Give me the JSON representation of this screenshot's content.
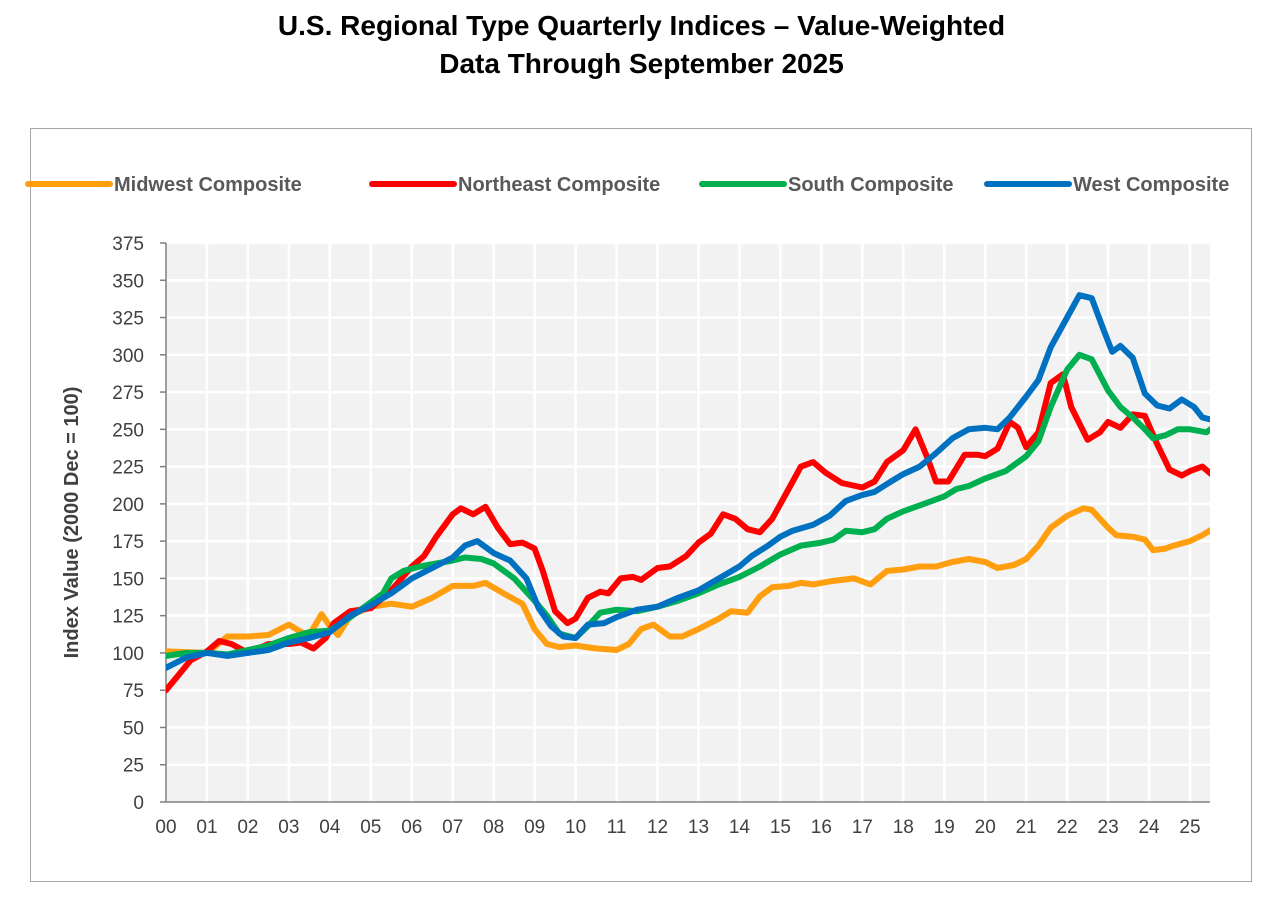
{
  "chart_data": {
    "type": "line",
    "title": "U.S. Regional Type Quarterly Indices – Value-Weighted",
    "subtitle": "Data Through September 2025",
    "xlabel": "",
    "ylabel": "Index Value (2000 Dec = 100)",
    "ylim": [
      0,
      375
    ],
    "yticks": [
      0,
      25,
      50,
      75,
      100,
      125,
      150,
      175,
      200,
      225,
      250,
      275,
      300,
      325,
      350,
      375
    ],
    "xlim": [
      2000,
      2025.6
    ],
    "xtick_labels": [
      "00",
      "01",
      "02",
      "03",
      "04",
      "05",
      "06",
      "07",
      "08",
      "09",
      "10",
      "11",
      "12",
      "13",
      "14",
      "15",
      "16",
      "17",
      "18",
      "19",
      "20",
      "21",
      "22",
      "23",
      "24",
      "25"
    ],
    "grid": true,
    "legend_position": "top",
    "series": [
      {
        "name": "Midwest Composite",
        "color": "#ff9e0f",
        "points": [
          [
            2000,
            101
          ],
          [
            2001,
            100
          ],
          [
            2001.5,
            111
          ],
          [
            2002,
            111
          ],
          [
            2002.5,
            112
          ],
          [
            2003,
            119
          ],
          [
            2003.3,
            114
          ],
          [
            2003.5,
            112
          ],
          [
            2003.8,
            126
          ],
          [
            2004,
            118
          ],
          [
            2004.2,
            112
          ],
          [
            2004.5,
            125
          ],
          [
            2005,
            131
          ],
          [
            2005.5,
            133
          ],
          [
            2006,
            131
          ],
          [
            2006.5,
            137
          ],
          [
            2007,
            145
          ],
          [
            2007.5,
            145
          ],
          [
            2007.8,
            147
          ],
          [
            2008.3,
            139
          ],
          [
            2008.7,
            133
          ],
          [
            2009,
            116
          ],
          [
            2009.3,
            106
          ],
          [
            2009.6,
            104
          ],
          [
            2010,
            105
          ],
          [
            2010.5,
            103
          ],
          [
            2011,
            102
          ],
          [
            2011.3,
            106
          ],
          [
            2011.6,
            116
          ],
          [
            2011.9,
            119
          ],
          [
            2012.3,
            111
          ],
          [
            2012.6,
            111
          ],
          [
            2013,
            116
          ],
          [
            2013.5,
            123
          ],
          [
            2013.8,
            128
          ],
          [
            2014.2,
            127
          ],
          [
            2014.5,
            138
          ],
          [
            2014.8,
            144
          ],
          [
            2015.2,
            145
          ],
          [
            2015.5,
            147
          ],
          [
            2015.8,
            146
          ],
          [
            2016.2,
            148
          ],
          [
            2016.5,
            149
          ],
          [
            2016.8,
            150
          ],
          [
            2017.2,
            146
          ],
          [
            2017.6,
            155
          ],
          [
            2018,
            156
          ],
          [
            2018.4,
            158
          ],
          [
            2018.8,
            158
          ],
          [
            2019.2,
            161
          ],
          [
            2019.6,
            163
          ],
          [
            2020,
            161
          ],
          [
            2020.3,
            157
          ],
          [
            2020.7,
            159
          ],
          [
            2021,
            163
          ],
          [
            2021.3,
            172
          ],
          [
            2021.6,
            184
          ],
          [
            2022,
            192
          ],
          [
            2022.4,
            197
          ],
          [
            2022.6,
            196
          ],
          [
            2023,
            184
          ],
          [
            2023.2,
            179
          ],
          [
            2023.6,
            178
          ],
          [
            2023.9,
            176
          ],
          [
            2024.1,
            169
          ],
          [
            2024.4,
            170
          ],
          [
            2024.6,
            172
          ],
          [
            2025,
            175
          ],
          [
            2025.3,
            179
          ],
          [
            2025.6,
            184
          ]
        ]
      },
      {
        "name": "Northeast Composite",
        "color": "#ff0000",
        "points": [
          [
            2000,
            75
          ],
          [
            2000.3,
            85
          ],
          [
            2000.6,
            95
          ],
          [
            2001,
            101
          ],
          [
            2001.3,
            108
          ],
          [
            2001.6,
            106
          ],
          [
            2002,
            100
          ],
          [
            2002.5,
            106
          ],
          [
            2003,
            106
          ],
          [
            2003.3,
            107
          ],
          [
            2003.6,
            103
          ],
          [
            2003.9,
            110
          ],
          [
            2004.1,
            120
          ],
          [
            2004.5,
            128
          ],
          [
            2005,
            130
          ],
          [
            2005.5,
            142
          ],
          [
            2006,
            158
          ],
          [
            2006.3,
            165
          ],
          [
            2006.6,
            178
          ],
          [
            2007,
            193
          ],
          [
            2007.2,
            197
          ],
          [
            2007.5,
            193
          ],
          [
            2007.8,
            198
          ],
          [
            2008.1,
            184
          ],
          [
            2008.4,
            173
          ],
          [
            2008.7,
            174
          ],
          [
            2009,
            170
          ],
          [
            2009.2,
            155
          ],
          [
            2009.5,
            128
          ],
          [
            2009.8,
            120
          ],
          [
            2010,
            123
          ],
          [
            2010.3,
            137
          ],
          [
            2010.6,
            141
          ],
          [
            2010.8,
            140
          ],
          [
            2011.1,
            150
          ],
          [
            2011.4,
            151
          ],
          [
            2011.6,
            149
          ],
          [
            2012,
            157
          ],
          [
            2012.3,
            158
          ],
          [
            2012.7,
            165
          ],
          [
            2013,
            174
          ],
          [
            2013.3,
            180
          ],
          [
            2013.6,
            193
          ],
          [
            2013.9,
            190
          ],
          [
            2014.2,
            183
          ],
          [
            2014.5,
            181
          ],
          [
            2014.8,
            190
          ],
          [
            2015.2,
            210
          ],
          [
            2015.5,
            225
          ],
          [
            2015.8,
            228
          ],
          [
            2016.1,
            221
          ],
          [
            2016.5,
            214
          ],
          [
            2017,
            211
          ],
          [
            2017.3,
            215
          ],
          [
            2017.6,
            228
          ],
          [
            2018,
            236
          ],
          [
            2018.3,
            250
          ],
          [
            2018.6,
            230
          ],
          [
            2018.8,
            215
          ],
          [
            2019.1,
            215
          ],
          [
            2019.5,
            233
          ],
          [
            2019.8,
            233
          ],
          [
            2020,
            232
          ],
          [
            2020.3,
            237
          ],
          [
            2020.6,
            255
          ],
          [
            2020.8,
            251
          ],
          [
            2021,
            238
          ],
          [
            2021.3,
            248
          ],
          [
            2021.6,
            281
          ],
          [
            2021.9,
            287
          ],
          [
            2022.1,
            265
          ],
          [
            2022.5,
            243
          ],
          [
            2022.8,
            248
          ],
          [
            2023,
            255
          ],
          [
            2023.3,
            251
          ],
          [
            2023.6,
            260
          ],
          [
            2023.9,
            259
          ],
          [
            2024.2,
            240
          ],
          [
            2024.5,
            223
          ],
          [
            2024.8,
            219
          ],
          [
            2025,
            222
          ],
          [
            2025.3,
            225
          ],
          [
            2025.6,
            218
          ]
        ]
      },
      {
        "name": "South Composite",
        "color": "#00b050",
        "points": [
          [
            2000,
            98
          ],
          [
            2000.5,
            100
          ],
          [
            2001,
            100
          ],
          [
            2001.5,
            99
          ],
          [
            2002,
            102
          ],
          [
            2002.5,
            105
          ],
          [
            2003,
            110
          ],
          [
            2003.5,
            114
          ],
          [
            2004,
            115
          ],
          [
            2004.5,
            124
          ],
          [
            2005,
            134
          ],
          [
            2005.3,
            140
          ],
          [
            2005.5,
            150
          ],
          [
            2005.8,
            155
          ],
          [
            2006.2,
            158
          ],
          [
            2006.6,
            160
          ],
          [
            2007,
            162
          ],
          [
            2007.3,
            164
          ],
          [
            2007.7,
            163
          ],
          [
            2008,
            160
          ],
          [
            2008.5,
            150
          ],
          [
            2009,
            135
          ],
          [
            2009.3,
            125
          ],
          [
            2009.6,
            113
          ],
          [
            2010,
            110
          ],
          [
            2010.3,
            118
          ],
          [
            2010.6,
            127
          ],
          [
            2011,
            129
          ],
          [
            2011.5,
            128
          ],
          [
            2012,
            131
          ],
          [
            2012.5,
            135
          ],
          [
            2013,
            140
          ],
          [
            2013.5,
            146
          ],
          [
            2014,
            151
          ],
          [
            2014.5,
            158
          ],
          [
            2015,
            166
          ],
          [
            2015.5,
            172
          ],
          [
            2016,
            174
          ],
          [
            2016.3,
            176
          ],
          [
            2016.6,
            182
          ],
          [
            2017,
            181
          ],
          [
            2017.3,
            183
          ],
          [
            2017.6,
            190
          ],
          [
            2018,
            195
          ],
          [
            2018.5,
            200
          ],
          [
            2019,
            205
          ],
          [
            2019.3,
            210
          ],
          [
            2019.6,
            212
          ],
          [
            2020,
            217
          ],
          [
            2020.5,
            222
          ],
          [
            2021,
            232
          ],
          [
            2021.3,
            242
          ],
          [
            2021.6,
            265
          ],
          [
            2022,
            290
          ],
          [
            2022.3,
            300
          ],
          [
            2022.6,
            297
          ],
          [
            2023,
            276
          ],
          [
            2023.3,
            265
          ],
          [
            2023.6,
            258
          ],
          [
            2023.9,
            250
          ],
          [
            2024.1,
            244
          ],
          [
            2024.4,
            246
          ],
          [
            2024.7,
            250
          ],
          [
            2025,
            250
          ],
          [
            2025.4,
            248
          ],
          [
            2025.6,
            252
          ]
        ]
      },
      {
        "name": "West Composite",
        "color": "#0070c0",
        "points": [
          [
            2000,
            90
          ],
          [
            2000.5,
            97
          ],
          [
            2001,
            100
          ],
          [
            2001.5,
            98
          ],
          [
            2002,
            100
          ],
          [
            2002.5,
            102
          ],
          [
            2003,
            107
          ],
          [
            2003.5,
            110
          ],
          [
            2004,
            114
          ],
          [
            2004.5,
            125
          ],
          [
            2005,
            132
          ],
          [
            2005.5,
            140
          ],
          [
            2006,
            150
          ],
          [
            2006.5,
            157
          ],
          [
            2007,
            164
          ],
          [
            2007.3,
            172
          ],
          [
            2007.6,
            175
          ],
          [
            2008,
            167
          ],
          [
            2008.4,
            162
          ],
          [
            2008.8,
            150
          ],
          [
            2009.1,
            130
          ],
          [
            2009.4,
            118
          ],
          [
            2009.7,
            111
          ],
          [
            2010,
            110
          ],
          [
            2010.3,
            119
          ],
          [
            2010.7,
            120
          ],
          [
            2011,
            124
          ],
          [
            2011.5,
            129
          ],
          [
            2012,
            131
          ],
          [
            2012.5,
            137
          ],
          [
            2013,
            142
          ],
          [
            2013.5,
            150
          ],
          [
            2014,
            158
          ],
          [
            2014.3,
            165
          ],
          [
            2014.7,
            172
          ],
          [
            2015,
            178
          ],
          [
            2015.3,
            182
          ],
          [
            2015.8,
            186
          ],
          [
            2016.2,
            192
          ],
          [
            2016.6,
            202
          ],
          [
            2017,
            206
          ],
          [
            2017.3,
            208
          ],
          [
            2017.7,
            215
          ],
          [
            2018,
            220
          ],
          [
            2018.4,
            225
          ],
          [
            2018.8,
            234
          ],
          [
            2019.2,
            244
          ],
          [
            2019.6,
            250
          ],
          [
            2020,
            251
          ],
          [
            2020.3,
            250
          ],
          [
            2020.6,
            258
          ],
          [
            2021,
            272
          ],
          [
            2021.3,
            283
          ],
          [
            2021.6,
            305
          ],
          [
            2022,
            325
          ],
          [
            2022.3,
            340
          ],
          [
            2022.6,
            338
          ],
          [
            2022.9,
            316
          ],
          [
            2023.1,
            302
          ],
          [
            2023.3,
            306
          ],
          [
            2023.6,
            298
          ],
          [
            2023.9,
            274
          ],
          [
            2024.2,
            266
          ],
          [
            2024.5,
            264
          ],
          [
            2024.8,
            270
          ],
          [
            2025.1,
            265
          ],
          [
            2025.3,
            258
          ],
          [
            2025.6,
            256
          ]
        ]
      }
    ]
  }
}
